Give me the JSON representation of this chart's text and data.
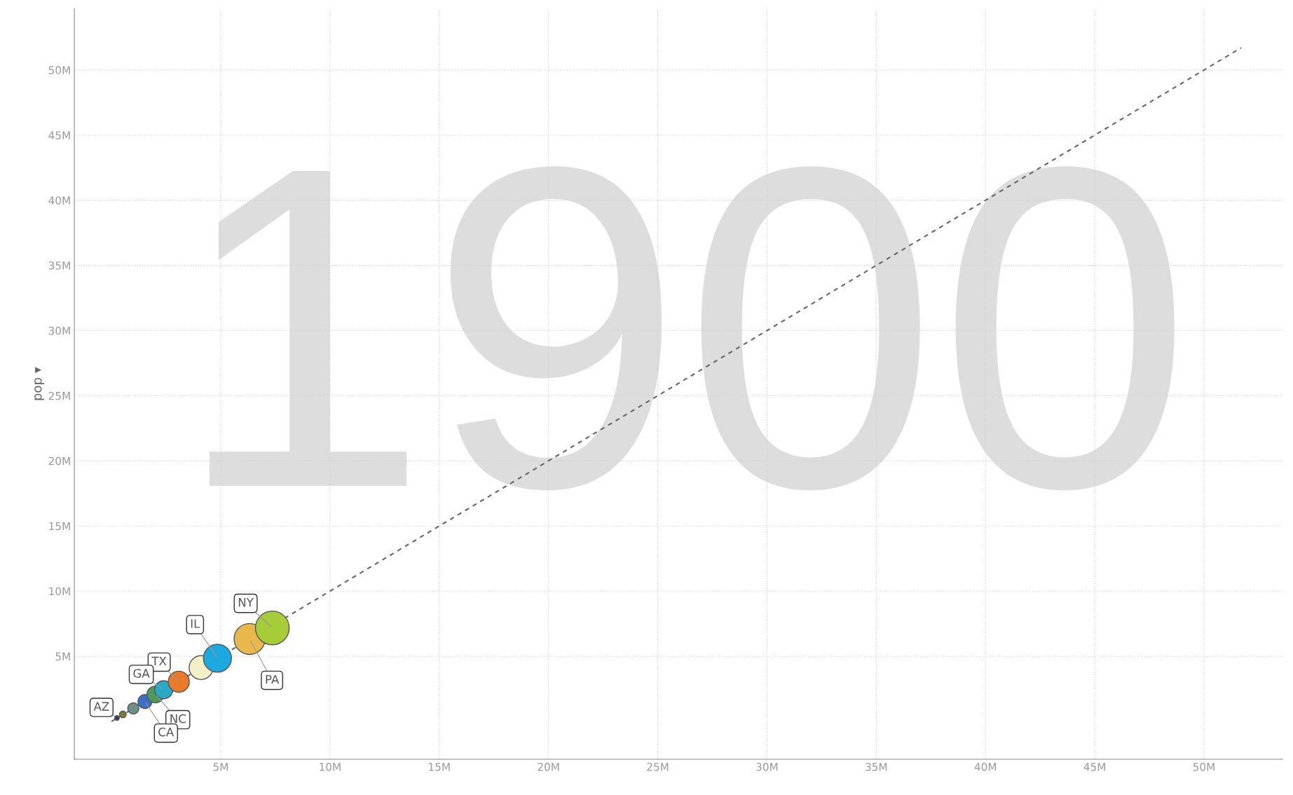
{
  "chart_data": {
    "type": "bubble",
    "ylabel": "pop ▾",
    "xlim": [
      -1.7,
      53.6
    ],
    "ylim": [
      -2.9,
      54.7
    ],
    "xticks": [
      {
        "value": 5,
        "label": "5M"
      },
      {
        "value": 10,
        "label": "10M"
      },
      {
        "value": 15,
        "label": "15M"
      },
      {
        "value": 20,
        "label": "20M"
      },
      {
        "value": 25,
        "label": "25M"
      },
      {
        "value": 30,
        "label": "30M"
      },
      {
        "value": 35,
        "label": "35M"
      },
      {
        "value": 40,
        "label": "40M"
      },
      {
        "value": 45,
        "label": "45M"
      },
      {
        "value": 50,
        "label": "50M"
      }
    ],
    "yticks": [
      {
        "value": 5,
        "label": "5M"
      },
      {
        "value": 10,
        "label": "10M"
      },
      {
        "value": 15,
        "label": "15M"
      },
      {
        "value": 20,
        "label": "20M"
      },
      {
        "value": 25,
        "label": "25M"
      },
      {
        "value": 30,
        "label": "30M"
      },
      {
        "value": 35,
        "label": "35M"
      },
      {
        "value": 40,
        "label": "40M"
      },
      {
        "value": 45,
        "label": "45M"
      },
      {
        "value": 50,
        "label": "50M"
      }
    ],
    "grid": true,
    "series": [
      {
        "type": "line",
        "x": [
          0,
          51.7
        ],
        "values": [
          0,
          51.7
        ],
        "color": "#666666",
        "line_style": "dashed"
      },
      {
        "x": [
          7.36,
          6.32,
          4.85,
          4.1,
          3.08,
          2.39,
          2.01,
          1.53,
          1.0,
          0.52,
          0.25
        ],
        "values": [
          7.18,
          6.33,
          4.85,
          4.13,
          3.05,
          2.43,
          2.07,
          1.53,
          1.0,
          0.54,
          0.27
        ],
        "sizes": [
          1,
          0.84,
          0.69,
          0.5,
          0.39,
          0.29,
          0.25,
          0.17,
          0.11,
          0.04,
          0.02
        ],
        "colors": [
          "#a6cc3a",
          "#e8b84a",
          "#1ba9e0",
          "#f3f0c8",
          "#e87a2a",
          "#2aa9c7",
          "#4f9a5a",
          "#3c6fc8",
          "#6f8f8a",
          "#7a7a3a",
          "#3a3a6a"
        ]
      }
    ],
    "annotations": [
      "1900",
      {
        "text": "NY",
        "x": 7.36,
        "y": 7.18
      },
      {
        "text": "PA",
        "x": 6.32,
        "y": 6.33
      },
      {
        "text": "IL",
        "x": 4.85,
        "y": 4.85
      },
      {
        "text": "TX",
        "x": 3.08,
        "y": 3.05
      },
      {
        "text": "GA",
        "x": 2.39,
        "y": 2.43
      },
      {
        "text": "NC",
        "x": 2.01,
        "y": 2.07
      },
      {
        "text": "CA",
        "x": 1.53,
        "y": 1.53
      },
      {
        "text": "AZ",
        "x": 0.25,
        "y": 0.27
      }
    ]
  }
}
